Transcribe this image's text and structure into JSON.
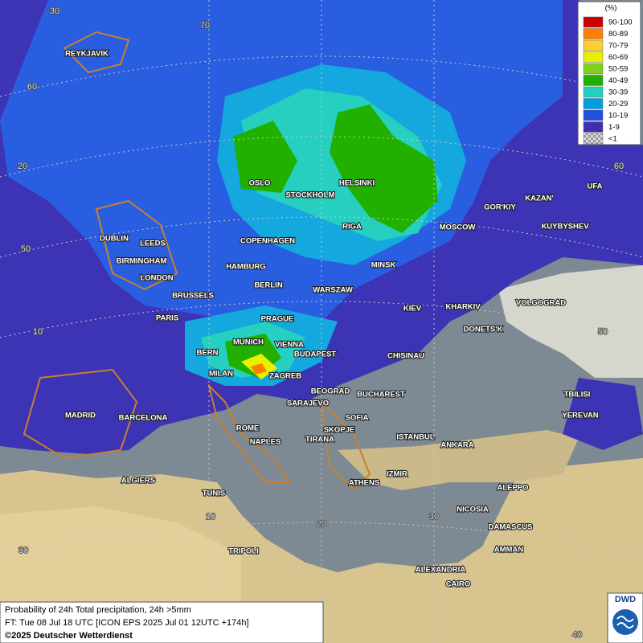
{
  "legend": {
    "unit": "(%)",
    "classes": [
      {
        "label": "90-100",
        "color": "#cc0000"
      },
      {
        "label": "80-89",
        "color": "#ff8000"
      },
      {
        "label": "70-79",
        "color": "#ffcc33"
      },
      {
        "label": "60-69",
        "color": "#e6f000"
      },
      {
        "label": "50-59",
        "color": "#80d020"
      },
      {
        "label": "40-49",
        "color": "#20b000"
      },
      {
        "label": "30-39",
        "color": "#20d0c0"
      },
      {
        "label": "20-29",
        "color": "#00a0e0"
      },
      {
        "label": "10-19",
        "color": "#2050e0"
      },
      {
        "label": "1-9",
        "color": "#4030b0"
      },
      {
        "label": "<1",
        "color": "#bbbbbb"
      }
    ]
  },
  "grid_labels": [
    "30",
    "70",
    "60",
    "20",
    "50",
    "10",
    "30",
    "10",
    "20",
    "30",
    "40",
    "50",
    "60"
  ],
  "cities": [
    "REYKJAVIK",
    "OSLO",
    "STOCKHOLM",
    "HELSINKI",
    "DUBLIN",
    "LEEDS",
    "BIRMINGHAM",
    "LONDON",
    "COPENHAGEN",
    "HAMBURG",
    "BERLIN",
    "RIGA",
    "MOSCOW",
    "MINSK",
    "WARSZAW",
    "KIEV",
    "KHARKIV",
    "VOLGOGRAD",
    "DONETS'K",
    "BRUSSELS",
    "PARIS",
    "PRAGUE",
    "MUNICH",
    "VIENNA",
    "BUDAPEST",
    "BERN",
    "MILAN",
    "ZAGREB",
    "CHISINAU",
    "BEOGRAD",
    "BUCHAREST",
    "SARAJEVO",
    "SOFIA",
    "MADRID",
    "BARCELONA",
    "ROME",
    "NAPLES",
    "SKOPJE",
    "TIRANA",
    "ISTANBUL",
    "ANKARA",
    "IZMIR",
    "ATHENS",
    "ALGIERS",
    "TUNIS",
    "ALEPPO",
    "NICOSIA",
    "DAMASCUS",
    "AMMAN",
    "TRIPOLI",
    "ALEXANDRIA",
    "CAIRO",
    "TBILISI",
    "YEREVAN",
    "KAZAN'",
    "GOR'KIY",
    "KUYBYSHEV",
    "UFA"
  ],
  "footer": {
    "line1": "Probability of 24h Total precipitation, 24h >5mm",
    "line2": "FT: Tue 08 Jul 18 UTC [ICON EPS 2025 Jul 01 12UTC +174h]",
    "copyright": "©2025 Deutscher Wetterdienst"
  },
  "logo": "DWD"
}
